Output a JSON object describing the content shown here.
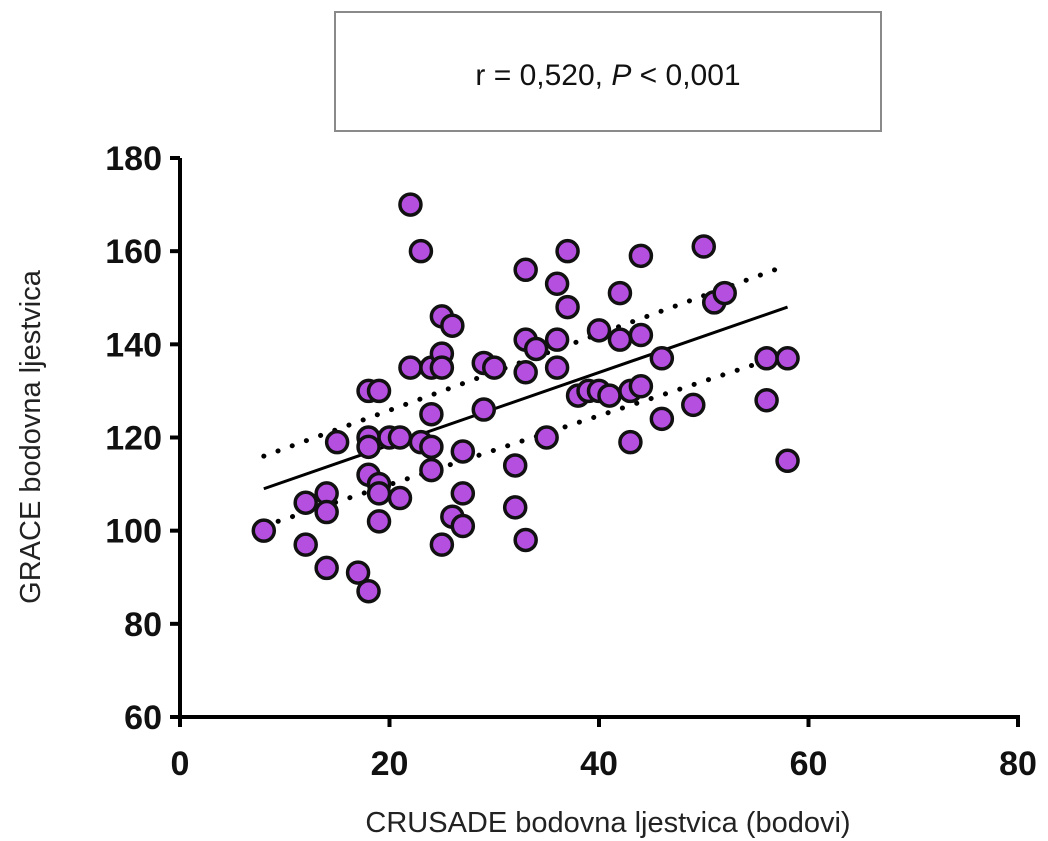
{
  "chart_data": {
    "type": "scatter",
    "annotation": {
      "r": "r = 0,520, ",
      "p_label": "P",
      "p_rest": " < 0,001"
    },
    "xlabel": "CRUSADE bodovna ljestvica (bodovi)",
    "ylabel": "GRACE bodovna ljestvica",
    "xlim": [
      0,
      80
    ],
    "ylim": [
      60,
      180
    ],
    "xticks": [
      "0",
      "20",
      "40",
      "60",
      "80"
    ],
    "yticks": [
      "60",
      "80",
      "100",
      "120",
      "140",
      "160",
      "180"
    ],
    "grid": false,
    "legend": "none",
    "marker_color": "#b44fe0",
    "series": [
      {
        "points": [
          [
            8,
            100
          ],
          [
            12,
            106
          ],
          [
            12,
            97
          ],
          [
            14,
            108
          ],
          [
            14,
            104
          ],
          [
            14,
            92
          ],
          [
            15,
            119
          ],
          [
            17,
            91
          ],
          [
            18,
            87
          ],
          [
            18,
            112
          ],
          [
            18,
            120
          ],
          [
            18,
            118
          ],
          [
            18,
            130
          ],
          [
            19,
            130
          ],
          [
            19,
            110
          ],
          [
            19,
            108
          ],
          [
            19,
            102
          ],
          [
            20,
            120
          ],
          [
            21,
            120
          ],
          [
            21,
            107
          ],
          [
            22,
            170
          ],
          [
            22,
            135
          ],
          [
            23,
            160
          ],
          [
            23,
            119
          ],
          [
            24,
            135
          ],
          [
            24,
            125
          ],
          [
            24,
            118
          ],
          [
            24,
            113
          ],
          [
            25,
            146
          ],
          [
            25,
            138
          ],
          [
            25,
            135
          ],
          [
            25,
            97
          ],
          [
            26,
            144
          ],
          [
            26,
            103
          ],
          [
            27,
            117
          ],
          [
            27,
            108
          ],
          [
            27,
            101
          ],
          [
            29,
            136
          ],
          [
            29,
            126
          ],
          [
            30,
            135
          ],
          [
            32,
            114
          ],
          [
            32,
            105
          ],
          [
            33,
            156
          ],
          [
            33,
            141
          ],
          [
            33,
            134
          ],
          [
            33,
            98
          ],
          [
            34,
            139
          ],
          [
            35,
            120
          ],
          [
            36,
            153
          ],
          [
            36,
            141
          ],
          [
            36,
            135
          ],
          [
            37,
            160
          ],
          [
            37,
            148
          ],
          [
            38,
            129
          ],
          [
            39,
            130
          ],
          [
            40,
            143
          ],
          [
            40,
            130
          ],
          [
            41,
            129
          ],
          [
            42,
            151
          ],
          [
            42,
            141
          ],
          [
            43,
            130
          ],
          [
            43,
            119
          ],
          [
            44,
            159
          ],
          [
            44,
            142
          ],
          [
            44,
            131
          ],
          [
            46,
            137
          ],
          [
            46,
            124
          ],
          [
            49,
            127
          ],
          [
            50,
            161
          ],
          [
            51,
            149
          ],
          [
            52,
            151
          ],
          [
            56,
            137
          ],
          [
            56,
            128
          ],
          [
            58,
            137
          ],
          [
            58,
            115
          ]
        ]
      }
    ],
    "fit_line": {
      "x": [
        8,
        58
      ],
      "y": [
        109,
        148
      ],
      "style": "solid"
    },
    "ci_upper": {
      "x": [
        8,
        58
      ],
      "y": [
        116,
        157
      ],
      "style": "dotted"
    },
    "ci_lower": {
      "x": [
        8,
        58
      ],
      "y": [
        101,
        138
      ],
      "style": "dotted"
    }
  }
}
